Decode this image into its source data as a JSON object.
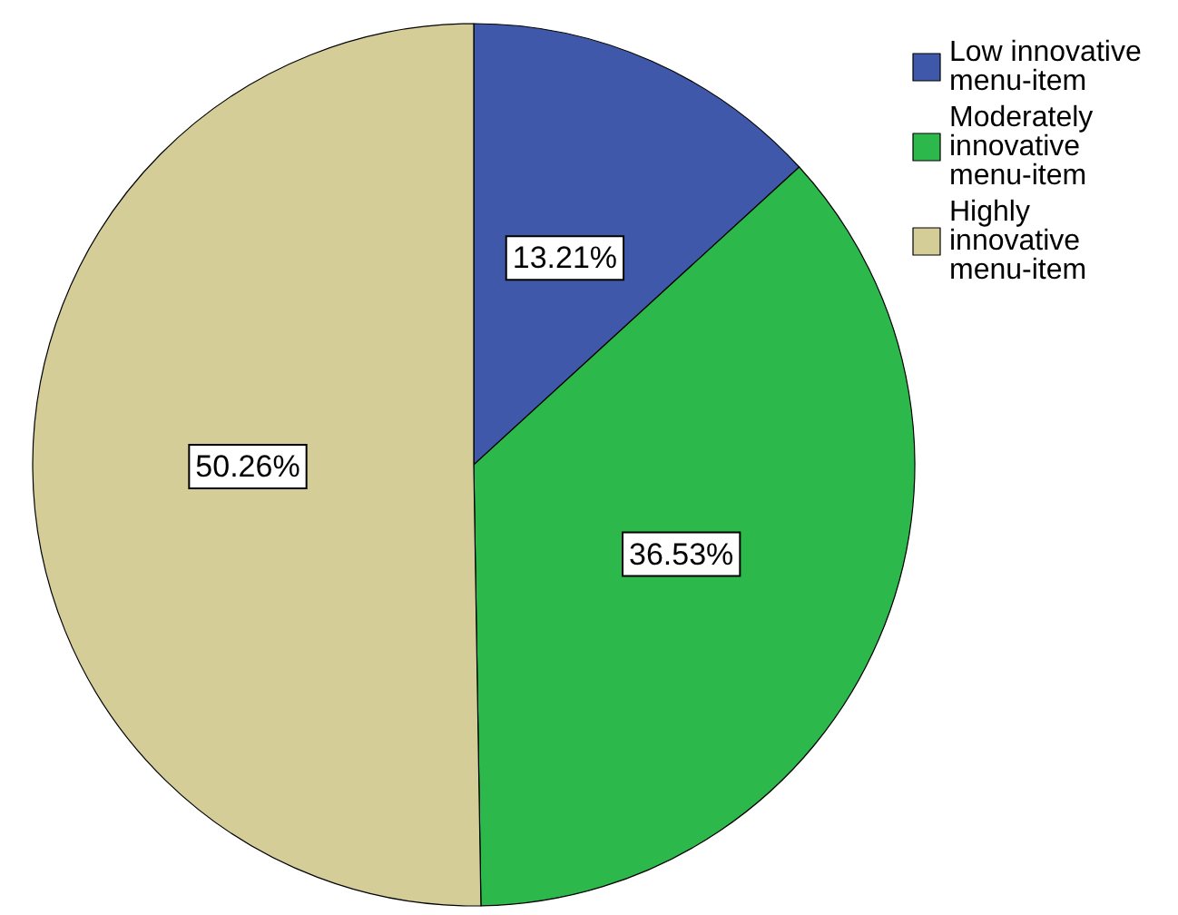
{
  "chart_data": {
    "type": "pie",
    "categories": [
      "Low innovative menu-item",
      "Moderately innovative menu-item",
      "Highly innovative menu-item"
    ],
    "values": [
      13.21,
      36.53,
      50.26
    ],
    "value_labels": [
      "13.21%",
      "36.53%",
      "50.26%"
    ],
    "colors": [
      "#3f58a9",
      "#2db84b",
      "#d4cd98"
    ],
    "legend": "top right"
  }
}
